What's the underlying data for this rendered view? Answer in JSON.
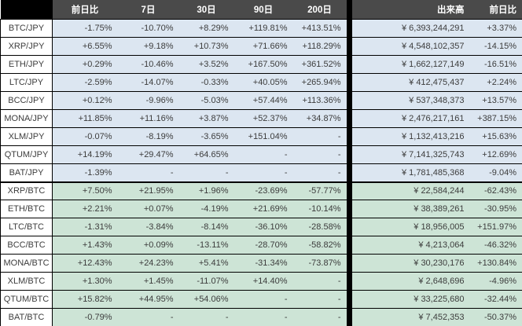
{
  "colors": {
    "header_bg": "#4a4a4a",
    "header_pair_bg": "#000000",
    "jpy_section_bg": "#dce6f1",
    "btc_section_bg": "#cde4d6",
    "divider": "#000000",
    "text": "#3c3c3c",
    "header_text": "#ffffff"
  },
  "table": {
    "columns": {
      "pair": "",
      "prev_day": "前日比",
      "d7": "7日",
      "d30": "30日",
      "d90": "90日",
      "d200": "200日",
      "volume": "出来高",
      "volume_prev_day": "前日比"
    },
    "rows": [
      {
        "pair": "BTC/JPY",
        "section": "jpy",
        "changes": [
          "-1.75%",
          "-10.70%",
          "+8.29%",
          "+119.81%",
          "+413.51%"
        ],
        "volume": "¥ 6,393,244,291",
        "volume_change": "+3.37%"
      },
      {
        "pair": "XRP/JPY",
        "section": "jpy",
        "changes": [
          "+6.55%",
          "+9.18%",
          "+10.73%",
          "+71.66%",
          "+118.29%"
        ],
        "volume": "¥ 4,548,102,357",
        "volume_change": "-14.15%"
      },
      {
        "pair": "ETH/JPY",
        "section": "jpy",
        "changes": [
          "+0.29%",
          "-10.46%",
          "+3.52%",
          "+167.50%",
          "+361.52%"
        ],
        "volume": "¥ 1,662,127,149",
        "volume_change": "-16.51%"
      },
      {
        "pair": "LTC/JPY",
        "section": "jpy",
        "changes": [
          "-2.59%",
          "-14.07%",
          "-0.33%",
          "+40.05%",
          "+265.94%"
        ],
        "volume": "¥ 412,475,437",
        "volume_change": "+2.24%"
      },
      {
        "pair": "BCC/JPY",
        "section": "jpy",
        "changes": [
          "+0.12%",
          "-9.96%",
          "-5.03%",
          "+57.44%",
          "+113.36%"
        ],
        "volume": "¥ 537,348,373",
        "volume_change": "+13.57%"
      },
      {
        "pair": "MONA/JPY",
        "section": "jpy",
        "changes": [
          "+11.85%",
          "+11.16%",
          "+3.87%",
          "+52.37%",
          "+34.87%"
        ],
        "volume": "¥ 2,476,217,161",
        "volume_change": "+387.15%"
      },
      {
        "pair": "XLM/JPY",
        "section": "jpy",
        "changes": [
          "-0.07%",
          "-8.19%",
          "-3.65%",
          "+151.04%",
          "-"
        ],
        "volume": "¥ 1,132,413,216",
        "volume_change": "+15.63%"
      },
      {
        "pair": "QTUM/JPY",
        "section": "jpy",
        "changes": [
          "+14.19%",
          "+29.47%",
          "+64.65%",
          "-",
          "-"
        ],
        "volume": "¥ 7,141,325,743",
        "volume_change": "+12.69%"
      },
      {
        "pair": "BAT/JPY",
        "section": "jpy",
        "changes": [
          "-1.39%",
          "-",
          "-",
          "-",
          "-"
        ],
        "volume": "¥ 1,781,485,368",
        "volume_change": "-9.04%"
      },
      {
        "pair": "XRP/BTC",
        "section": "btc",
        "changes": [
          "+7.50%",
          "+21.95%",
          "+1.96%",
          "-23.69%",
          "-57.77%"
        ],
        "volume": "¥ 22,584,244",
        "volume_change": "-62.43%"
      },
      {
        "pair": "ETH/BTC",
        "section": "btc",
        "changes": [
          "+2.21%",
          "+0.07%",
          "-4.19%",
          "+21.69%",
          "-10.14%"
        ],
        "volume": "¥ 38,389,261",
        "volume_change": "-30.95%"
      },
      {
        "pair": "LTC/BTC",
        "section": "btc",
        "changes": [
          "-1.31%",
          "-3.84%",
          "-8.14%",
          "-36.10%",
          "-28.58%"
        ],
        "volume": "¥ 18,956,005",
        "volume_change": "+151.97%"
      },
      {
        "pair": "BCC/BTC",
        "section": "btc",
        "changes": [
          "+1.43%",
          "+0.09%",
          "-13.11%",
          "-28.70%",
          "-58.82%"
        ],
        "volume": "¥ 4,213,064",
        "volume_change": "-46.32%"
      },
      {
        "pair": "MONA/BTC",
        "section": "btc",
        "changes": [
          "+12.43%",
          "+24.23%",
          "+5.41%",
          "-31.34%",
          "-73.87%"
        ],
        "volume": "¥ 30,230,176",
        "volume_change": "+130.84%"
      },
      {
        "pair": "XLM/BTC",
        "section": "btc",
        "changes": [
          "+1.30%",
          "+1.45%",
          "-11.07%",
          "+14.40%",
          "-"
        ],
        "volume": "¥ 2,648,696",
        "volume_change": "-4.96%"
      },
      {
        "pair": "QTUM/BTC",
        "section": "btc",
        "changes": [
          "+15.82%",
          "+44.95%",
          "+54.06%",
          "-",
          "-"
        ],
        "volume": "¥ 33,225,680",
        "volume_change": "-32.44%"
      },
      {
        "pair": "BAT/BTC",
        "section": "btc",
        "changes": [
          "-0.79%",
          "-",
          "-",
          "-",
          "-"
        ],
        "volume": "¥ 7,452,353",
        "volume_change": "-50.37%"
      }
    ]
  }
}
